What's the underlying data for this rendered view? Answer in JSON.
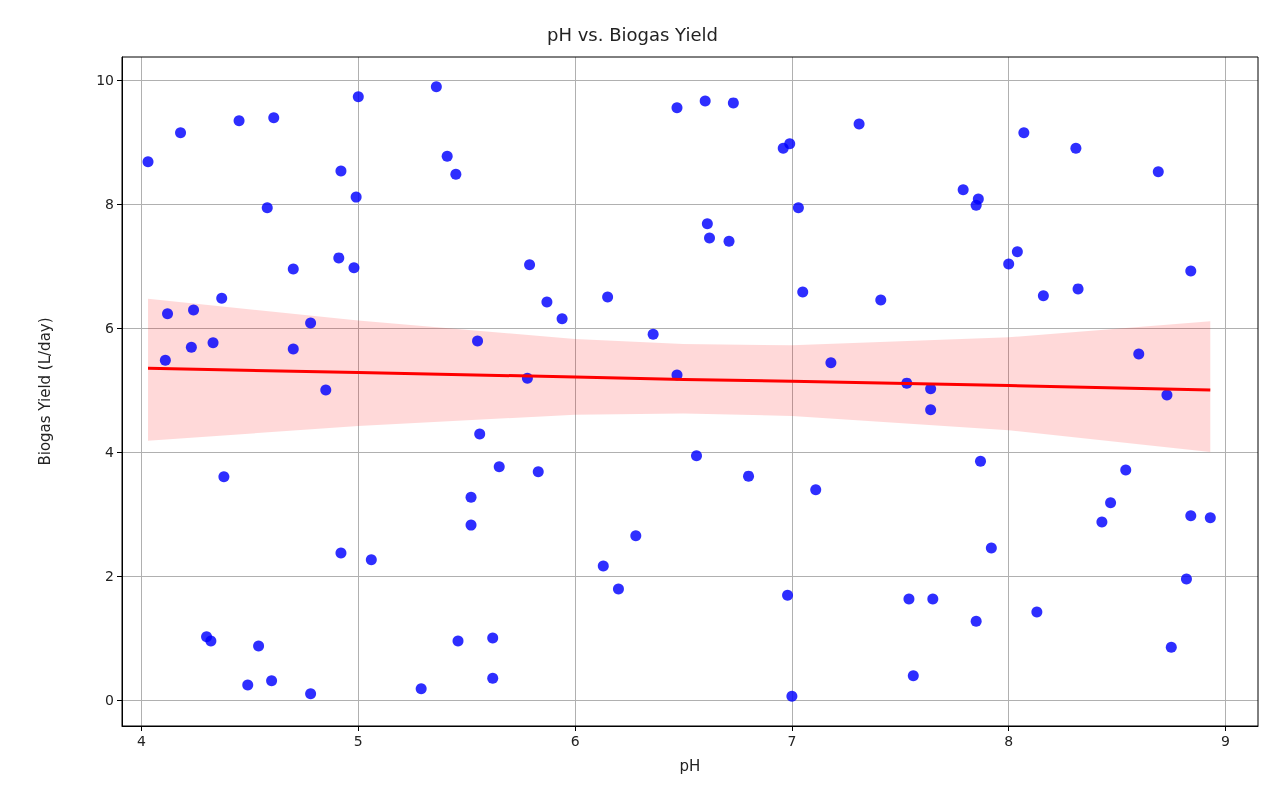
{
  "chart_data": {
    "type": "scatter",
    "title": "pH vs. Biogas Yield",
    "xlabel": "pH",
    "ylabel": "Biogas Yield (L/day)",
    "xlim": [
      3.91,
      9.15
    ],
    "xticks": [
      4,
      5,
      6,
      7,
      8,
      9
    ],
    "ylim": [
      -0.42,
      10.37
    ],
    "yticks": [
      0,
      2,
      4,
      6,
      8,
      10
    ],
    "grid": true,
    "marker": "circle",
    "series": [
      {
        "color": "#0000ff",
        "x": [
          4.03,
          4.11,
          4.12,
          4.18,
          4.23,
          4.24,
          4.3,
          4.32,
          4.33,
          4.37,
          4.38,
          4.45,
          4.49,
          4.54,
          4.58,
          4.6,
          4.61,
          4.7,
          4.7,
          4.78,
          4.78,
          4.85,
          4.91,
          4.92,
          4.92,
          4.98,
          4.99,
          5.0,
          5.06,
          5.29,
          5.36,
          5.41,
          5.45,
          5.46,
          5.52,
          5.52,
          5.55,
          5.56,
          5.62,
          5.62,
          5.65,
          5.78,
          5.79,
          5.83,
          5.87,
          5.94,
          6.13,
          6.15,
          6.2,
          6.28,
          6.36,
          6.47,
          6.47,
          6.56,
          6.6,
          6.61,
          6.62,
          6.71,
          6.73,
          6.8,
          6.96,
          6.99,
          6.98,
          7.0,
          7.03,
          7.05,
          7.11,
          7.18,
          7.31,
          7.41,
          7.53,
          7.54,
          7.56,
          7.64,
          7.64,
          7.65,
          7.79,
          7.85,
          7.86,
          7.85,
          7.87,
          7.92,
          8.0,
          8.04,
          8.07,
          8.13,
          8.16,
          8.31,
          8.32,
          8.43,
          8.47,
          8.54,
          8.6,
          8.69,
          8.73,
          8.75,
          8.82,
          8.84,
          8.84,
          8.93
        ],
        "values": [
          8.68,
          5.48,
          6.23,
          9.15,
          5.69,
          6.29,
          1.02,
          0.95,
          5.76,
          6.48,
          3.6,
          9.34,
          0.24,
          0.87,
          7.94,
          0.31,
          9.39,
          6.95,
          5.66,
          6.08,
          0.1,
          5.0,
          7.13,
          8.53,
          2.37,
          6.97,
          8.11,
          9.73,
          2.26,
          0.18,
          9.89,
          8.77,
          8.48,
          0.95,
          3.27,
          2.82,
          5.79,
          4.29,
          1.0,
          0.35,
          3.76,
          5.19,
          7.02,
          3.68,
          6.42,
          6.15,
          2.16,
          6.5,
          1.79,
          2.65,
          5.9,
          5.24,
          9.55,
          3.94,
          9.66,
          7.68,
          7.45,
          7.4,
          9.63,
          3.61,
          8.9,
          8.97,
          1.69,
          0.06,
          7.94,
          6.58,
          3.39,
          5.44,
          9.29,
          6.45,
          5.11,
          1.63,
          0.39,
          5.02,
          4.68,
          1.63,
          8.23,
          7.98,
          8.08,
          1.27,
          3.85,
          2.45,
          7.03,
          7.23,
          9.15,
          1.42,
          6.52,
          8.9,
          6.63,
          2.87,
          3.18,
          3.71,
          5.58,
          8.52,
          4.92,
          0.85,
          1.95,
          6.92,
          2.97,
          2.94
        ]
      },
      {
        "type": "line",
        "color": "#ff0000",
        "line_style": "solid",
        "marker": "none",
        "x": [
          4.03,
          5.0,
          6.0,
          6.5,
          7.0,
          8.0,
          8.93
        ],
        "values": [
          5.35,
          5.28,
          5.21,
          5.17,
          5.14,
          5.07,
          5.0
        ],
        "lower": [
          4.18,
          4.42,
          4.6,
          4.62,
          4.58,
          4.35,
          4.0
        ],
        "upper": [
          6.47,
          6.12,
          5.82,
          5.74,
          5.72,
          5.85,
          6.11
        ]
      }
    ]
  }
}
